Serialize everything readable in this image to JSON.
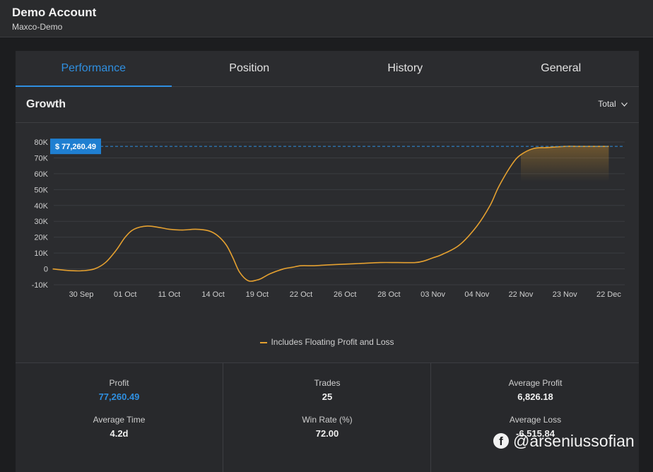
{
  "account": {
    "title": "Demo Account",
    "subtitle": "Maxco-Demo"
  },
  "tabs": [
    {
      "label": "Performance",
      "active": true
    },
    {
      "label": "Position",
      "active": false
    },
    {
      "label": "History",
      "active": false
    },
    {
      "label": "General",
      "active": false
    }
  ],
  "growth": {
    "title": "Growth",
    "dropdown": "Total",
    "dropdown_icon": "chevron-down-icon"
  },
  "chart_data": {
    "type": "line",
    "title": "",
    "xlabel": "",
    "ylabel": "",
    "ylim": [
      -10000,
      80000
    ],
    "yticks": [
      "80K",
      "70K",
      "60K",
      "50K",
      "40K",
      "30K",
      "20K",
      "10K",
      "0",
      "-10K"
    ],
    "xticks": [
      "30 Sep",
      "01 Oct",
      "11 Oct",
      "14 Oct",
      "19 Oct",
      "22 Oct",
      "26 Oct",
      "28 Oct",
      "03 Nov",
      "04 Nov",
      "22 Nov",
      "23 Nov",
      "22 Dec"
    ],
    "grid": true,
    "legend_position": "bottom",
    "current_value_label": "$ 77,260.49",
    "current_value": 77260.49,
    "series": [
      {
        "name": "Includes Floating Profit and Loss",
        "color": "#e4a030",
        "x": [
          -0.65,
          -0.3,
          0,
          0.3,
          0.55,
          0.8,
          1,
          1.2,
          1.5,
          1.8,
          2,
          2.3,
          2.6,
          2.9,
          3.1,
          3.3,
          3.45,
          3.6,
          3.8,
          4.0,
          4.1,
          4.3,
          4.6,
          4.8,
          5.0,
          5.3,
          5.6,
          6.0,
          6.4,
          6.8,
          7.2,
          7.6,
          7.8,
          8.0,
          8.2,
          8.6,
          9.0,
          9.3,
          9.5,
          9.8,
          10.0,
          10.3,
          10.6,
          11.0,
          11.3,
          12.0
        ],
        "values": [
          0,
          -1000,
          -1200,
          0,
          4000,
          12000,
          20000,
          25000,
          27000,
          26000,
          25000,
          24500,
          25000,
          24000,
          21000,
          15000,
          7000,
          -2000,
          -7500,
          -7000,
          -6000,
          -3000,
          0,
          1000,
          2000,
          2000,
          2500,
          3000,
          3500,
          4000,
          4000,
          4000,
          5000,
          7000,
          9000,
          15000,
          27000,
          40000,
          52000,
          66000,
          72000,
          76000,
          76500,
          77260.49,
          77260.49,
          77260.49
        ]
      }
    ]
  },
  "stats": {
    "profit": {
      "label": "Profit",
      "value": "77,260.49",
      "color": "#2f8fe0"
    },
    "trades": {
      "label": "Trades",
      "value": "25"
    },
    "avg_profit": {
      "label": "Average Profit",
      "value": "6,826.18"
    },
    "avg_time": {
      "label": "Average Time",
      "value": "4.2d"
    },
    "win_rate": {
      "label": "Win Rate (%)",
      "value": "72.00"
    },
    "avg_loss": {
      "label": "Average Loss",
      "value": "-6,515.84"
    }
  },
  "watermark": {
    "text": "@arseniussofian",
    "icon": "facebook-icon"
  }
}
